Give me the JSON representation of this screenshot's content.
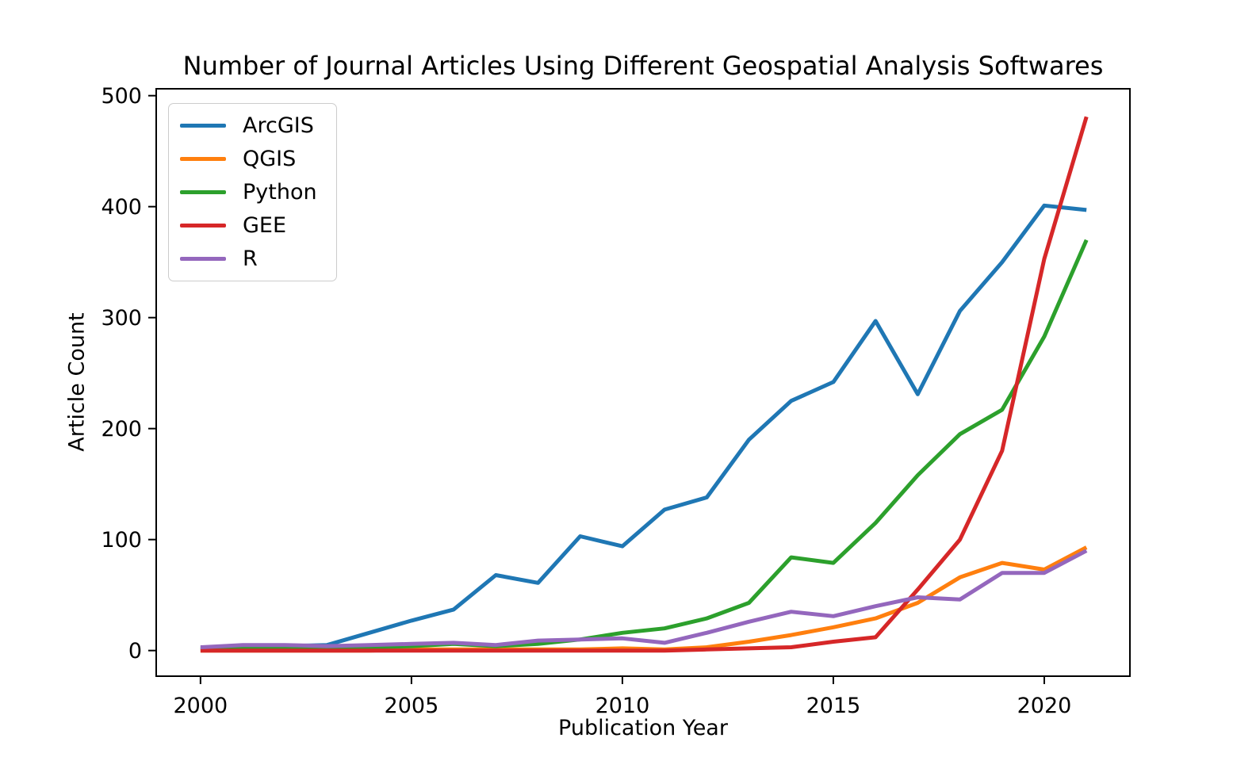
{
  "figure": {
    "background": "#ffffff"
  },
  "chart_data": {
    "type": "line",
    "title": "Number of Journal Articles Using Different Geospatial Analysis Softwares",
    "xlabel": "Publication Year",
    "ylabel": "Article Count",
    "x": [
      2000,
      2001,
      2002,
      2003,
      2004,
      2005,
      2006,
      2007,
      2008,
      2009,
      2010,
      2011,
      2012,
      2013,
      2014,
      2015,
      2016,
      2017,
      2018,
      2019,
      2020,
      2021
    ],
    "series": [
      {
        "name": "ArcGIS",
        "color": "#1f77b4",
        "values": [
          2,
          3,
          4,
          5,
          16,
          27,
          37,
          68,
          61,
          103,
          94,
          127,
          138,
          190,
          225,
          242,
          297,
          231,
          306,
          350,
          401,
          397
        ]
      },
      {
        "name": "QGIS",
        "color": "#ff7f0e",
        "values": [
          0,
          0,
          0,
          0,
          0,
          1,
          1,
          1,
          1,
          1,
          2,
          1,
          3,
          8,
          14,
          21,
          29,
          43,
          66,
          79,
          73,
          93
        ]
      },
      {
        "name": "Python",
        "color": "#2ca02c",
        "values": [
          1,
          2,
          3,
          2,
          3,
          4,
          6,
          4,
          6,
          10,
          16,
          20,
          29,
          43,
          84,
          79,
          115,
          158,
          195,
          217,
          283,
          370
        ]
      },
      {
        "name": "GEE",
        "color": "#d62728",
        "values": [
          0,
          0,
          0,
          0,
          0,
          0,
          0,
          0,
          0,
          0,
          0,
          0,
          1,
          2,
          3,
          8,
          12,
          55,
          100,
          180,
          353,
          481
        ]
      },
      {
        "name": "R",
        "color": "#9467bd",
        "values": [
          3,
          5,
          5,
          4,
          5,
          6,
          7,
          5,
          9,
          10,
          11,
          7,
          16,
          26,
          35,
          31,
          40,
          48,
          46,
          70,
          70,
          90
        ]
      }
    ],
    "xticks": [
      2000,
      2005,
      2010,
      2015,
      2020
    ],
    "yticks": [
      0,
      100,
      200,
      300,
      400,
      500
    ],
    "xlim": [
      1998.95,
      2022.03
    ],
    "ylim": [
      -23.1,
      506.2
    ],
    "grid": false,
    "legend_position": "upper left",
    "axis_color": "#000000",
    "tick_font_size": 27,
    "title_font_size": 32,
    "line_width": 5
  }
}
